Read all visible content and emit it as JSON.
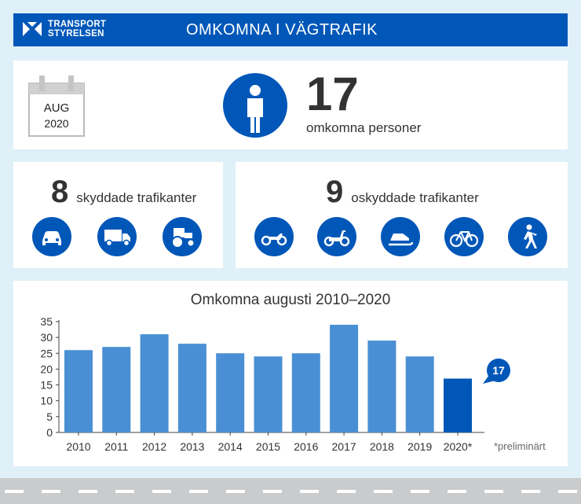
{
  "header": {
    "logo_line1": "TRANSPORT",
    "logo_line2": "STYRELSEN",
    "title": "OMKOMNA I VÄGTRAFIK"
  },
  "summary": {
    "month": "AUG",
    "year": "2020",
    "total": "17",
    "total_caption": "omkomna personer"
  },
  "protected": {
    "count": "8",
    "label": "skyddade trafikanter",
    "icons": [
      "car-icon",
      "truck-icon",
      "tractor-icon"
    ]
  },
  "unprotected": {
    "count": "9",
    "label": "oskyddade trafikanter",
    "icons": [
      "motorcycle-icon",
      "moped-icon",
      "snowmobile-icon",
      "bicycle-icon",
      "pedestrian-icon"
    ]
  },
  "colors": {
    "brand": "#0057b8",
    "bar": "#4a8fd4",
    "bar_highlight": "#0057b8",
    "background": "#dff0f8"
  },
  "chart_data": {
    "type": "bar",
    "title": "Omkomna augusti 2010–2020",
    "categories": [
      "2010",
      "2011",
      "2012",
      "2013",
      "2014",
      "2015",
      "2016",
      "2017",
      "2018",
      "2019",
      "2020*"
    ],
    "values": [
      26,
      27,
      31,
      28,
      25,
      24,
      25,
      34,
      29,
      24,
      17
    ],
    "highlight_index": 10,
    "callout": "17",
    "yticks": [
      0,
      5,
      10,
      15,
      20,
      25,
      30,
      35
    ],
    "ylim": [
      0,
      35
    ],
    "grid": false,
    "legend": "none",
    "xlabel": "",
    "ylabel": "",
    "note": "*preliminärt"
  }
}
